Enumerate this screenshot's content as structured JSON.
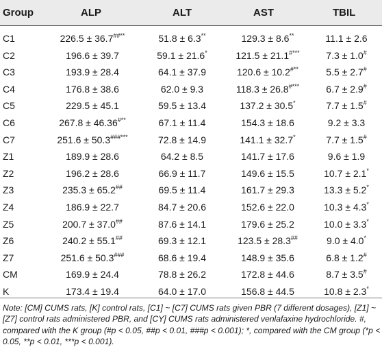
{
  "table": {
    "headers": [
      "Group",
      "ALP",
      "ALT",
      "AST",
      "TBIL"
    ],
    "rows": [
      {
        "group": "C1",
        "alp": "226.5 ± 36.7",
        "alp_sup": "##**",
        "alt": "51.8 ± 6.3",
        "alt_sup": "**",
        "ast": "129.3 ± 8.6",
        "ast_sup": "**",
        "tbil": "11.1 ± 2.6",
        "tbil_sup": ""
      },
      {
        "group": "C2",
        "alp": "196.6 ± 39.7",
        "alp_sup": "",
        "alt": "59.1 ± 21.6",
        "alt_sup": "*",
        "ast": "121.5 ± 21.1",
        "ast_sup": "#***",
        "tbil": "7.3 ± 1.0",
        "tbil_sup": "#"
      },
      {
        "group": "C3",
        "alp": "193.9 ± 28.4",
        "alp_sup": "",
        "alt": "64.1 ± 37.9",
        "alt_sup": "",
        "ast": "120.6 ± 10.2",
        "ast_sup": "#**",
        "tbil": "5.5 ± 2.7",
        "tbil_sup": "#"
      },
      {
        "group": "C4",
        "alp": "176.8 ± 38.6",
        "alp_sup": "",
        "alt": "62.0 ± 9.3",
        "alt_sup": "",
        "ast": "118.3 ± 26.8",
        "ast_sup": "#***",
        "tbil": "6.7 ± 2.9",
        "tbil_sup": "#"
      },
      {
        "group": "C5",
        "alp": "229.5 ± 45.1",
        "alp_sup": "",
        "alt": "59.5 ± 13.4",
        "alt_sup": "",
        "ast": "137.2 ± 30.5",
        "ast_sup": "*",
        "tbil": "7.7 ± 1.5",
        "tbil_sup": "#"
      },
      {
        "group": "C6",
        "alp": "267.8 ± 46.36",
        "alp_sup": "#**",
        "alt": "67.1 ± 11.4",
        "alt_sup": "",
        "ast": "154.3 ± 18.6",
        "ast_sup": "",
        "tbil": "9.2 ± 3.3",
        "tbil_sup": ""
      },
      {
        "group": "C7",
        "alp": "251.6 ± 50.3",
        "alp_sup": "###***",
        "alt": "72.8 ± 14.9",
        "alt_sup": "",
        "ast": "141.1 ± 32.7",
        "ast_sup": "*",
        "tbil": "7.7 ± 1.5",
        "tbil_sup": "#"
      },
      {
        "group": "Z1",
        "alp": "189.9 ± 28.6",
        "alp_sup": "",
        "alt": "64.2 ± 8.5",
        "alt_sup": "",
        "ast": "141.7 ± 17.6",
        "ast_sup": "",
        "tbil": "9.6 ± 1.9",
        "tbil_sup": ""
      },
      {
        "group": "Z2",
        "alp": "196.2 ± 28.6",
        "alp_sup": "",
        "alt": "66.9 ± 11.7",
        "alt_sup": "",
        "ast": "149.6 ± 15.5",
        "ast_sup": "",
        "tbil": "10.7 ± 2.1",
        "tbil_sup": "*"
      },
      {
        "group": "Z3",
        "alp": "235.3 ± 65.2",
        "alp_sup": "##",
        "alt": "69.5 ± 11.4",
        "alt_sup": "",
        "ast": "161.7 ± 29.3",
        "ast_sup": "",
        "tbil": "13.3 ± 5.2",
        "tbil_sup": "*"
      },
      {
        "group": "Z4",
        "alp": "186.9 ± 22.7",
        "alp_sup": "",
        "alt": "84.7 ± 20.6",
        "alt_sup": "",
        "ast": "152.6 ± 22.0",
        "ast_sup": "",
        "tbil": "10.3 ± 4.3",
        "tbil_sup": "*"
      },
      {
        "group": "Z5",
        "alp": "200.7 ± 37.0",
        "alp_sup": "##",
        "alt": "87.6 ± 14.1",
        "alt_sup": "",
        "ast": "179.6 ± 25.2",
        "ast_sup": "",
        "tbil": "10.0 ± 3.3",
        "tbil_sup": "*"
      },
      {
        "group": "Z6",
        "alp": "240.2 ± 55.1",
        "alp_sup": "##",
        "alt": "69.3 ± 12.1",
        "alt_sup": "",
        "ast": "123.5 ± 28.3",
        "ast_sup": "##",
        "tbil": "9.0 ± 4.0",
        "tbil_sup": "*"
      },
      {
        "group": "Z7",
        "alp": "251.6 ± 50.3",
        "alp_sup": "###",
        "alt": "68.6 ± 19.4",
        "alt_sup": "",
        "ast": "148.9 ± 35.6",
        "ast_sup": "",
        "tbil": "6.8 ± 1.2",
        "tbil_sup": "#"
      },
      {
        "group": "CM",
        "alp": "169.9 ± 24.4",
        "alp_sup": "",
        "alt": "78.8 ± 26.2",
        "alt_sup": "",
        "ast": "172.8 ± 44.6",
        "ast_sup": "",
        "tbil": "8.7 ± 3.5",
        "tbil_sup": "#"
      },
      {
        "group": "K",
        "alp": "173.4 ± 19.4",
        "alp_sup": "",
        "alt": "64.0 ± 17.0",
        "alt_sup": "",
        "ast": "156.8 ± 44.5",
        "ast_sup": "",
        "tbil": "10.8 ± 2.3",
        "tbil_sup": "*"
      }
    ]
  },
  "note": "Note: [CM] CUMS rats, [K] control rats, [C1] ~ [C7] CUMS rats given PBR (7 different dosages), [Z1] ~ [Z7] control rats administered PBR, and [CY] CUMS rats administered venlafaxine hydrochloride. #, compared with the K group (#p < 0.05, ##p < 0.01, ###p < 0.001); *, compared with the CM group (*p < 0.05, **p < 0.01, ***p < 0.001)."
}
